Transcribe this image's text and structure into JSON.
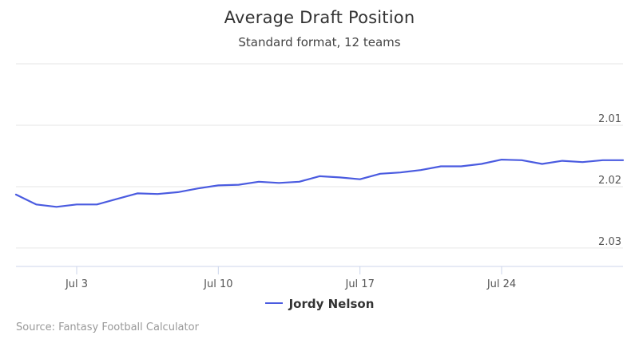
{
  "title": "Average Draft Position",
  "subtitle": "Standard format, 12 teams",
  "source": "Source: Fantasy Football Calculator",
  "colors": {
    "series": "#4a5be0",
    "grid": "#e6e6e6",
    "axis": "#ccd6eb"
  },
  "chart_data": {
    "type": "line",
    "xlabel": "",
    "ylabel": "",
    "x_ticks": [
      "Jul 3",
      "Jul 10",
      "Jul 17",
      "Jul 24"
    ],
    "y_ticks": [
      "2.01",
      "2.02",
      "2.03"
    ],
    "y_tick_values": [
      2.01,
      2.02,
      2.03
    ],
    "ylim": [
      2.0,
      2.033
    ],
    "y_reversed": true,
    "grid": true,
    "legend_position": "bottom-center",
    "series": [
      {
        "name": "Jordy Nelson",
        "x": [
          "Jun 30",
          "Jul 1",
          "Jul 2",
          "Jul 3",
          "Jul 4",
          "Jul 5",
          "Jul 6",
          "Jul 7",
          "Jul 8",
          "Jul 9",
          "Jul 10",
          "Jul 11",
          "Jul 12",
          "Jul 13",
          "Jul 14",
          "Jul 15",
          "Jul 16",
          "Jul 17",
          "Jul 18",
          "Jul 19",
          "Jul 20",
          "Jul 21",
          "Jul 22",
          "Jul 23",
          "Jul 24",
          "Jul 25",
          "Jul 26",
          "Jul 27",
          "Jul 28",
          "Jul 29",
          "Jul 30"
        ],
        "values": [
          2.0213,
          2.0229,
          2.0233,
          2.0229,
          2.0229,
          2.022,
          2.0211,
          2.0212,
          2.0209,
          2.0203,
          2.0198,
          2.0197,
          2.0192,
          2.0194,
          2.0192,
          2.0183,
          2.0185,
          2.0188,
          2.0179,
          2.0177,
          2.0173,
          2.0167,
          2.0167,
          2.0163,
          2.0156,
          2.0157,
          2.0163,
          2.0158,
          2.016,
          2.0157,
          2.0157
        ]
      }
    ]
  }
}
